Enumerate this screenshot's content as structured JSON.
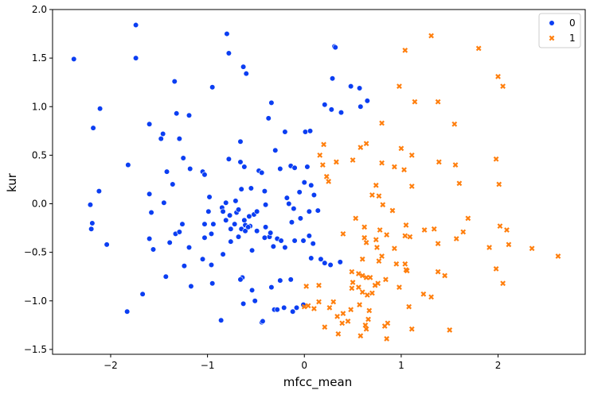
{
  "chart_data": {
    "type": "scatter",
    "xlabel": "mfcc_mean",
    "ylabel": "kur",
    "xlim": [
      -2.6,
      2.9
    ],
    "ylim": [
      -1.55,
      2.0
    ],
    "x_ticks": [
      -2,
      -1,
      0,
      1,
      2
    ],
    "x_tick_labels": [
      "−2",
      "−1",
      "0",
      "1",
      "2"
    ],
    "y_ticks": [
      -1.5,
      -1.0,
      -0.5,
      0.0,
      0.5,
      1.0,
      1.5,
      2.0
    ],
    "y_tick_labels": [
      "−1.5",
      "−1.0",
      "−0.5",
      "0.0",
      "0.5",
      "1.0",
      "1.5",
      "2.0"
    ],
    "grid": false,
    "legend": {
      "placement": "top-right"
    },
    "series": [
      {
        "name": "0",
        "marker": "circle",
        "color": "#0b3ef2",
        "points": [
          [
            -2.38,
            1.49
          ],
          [
            -1.74,
            1.84
          ],
          [
            -1.74,
            1.5
          ],
          [
            -2.11,
            0.98
          ],
          [
            -2.18,
            0.78
          ],
          [
            -2.21,
            -0.01
          ],
          [
            -2.19,
            -0.2
          ],
          [
            -2.2,
            -0.26
          ],
          [
            -2.12,
            0.13
          ],
          [
            -2.04,
            -0.42
          ],
          [
            -1.82,
            0.4
          ],
          [
            -1.83,
            -1.11
          ],
          [
            -1.67,
            -0.93
          ],
          [
            -1.6,
            0.82
          ],
          [
            -1.6,
            0.1
          ],
          [
            -1.58,
            -0.09
          ],
          [
            -1.6,
            -0.36
          ],
          [
            -1.56,
            -0.47
          ],
          [
            -1.48,
            0.67
          ],
          [
            -1.46,
            0.72
          ],
          [
            -1.45,
            0.01
          ],
          [
            -1.42,
            0.33
          ],
          [
            -1.43,
            -0.75
          ],
          [
            -1.39,
            -0.4
          ],
          [
            -1.36,
            0.2
          ],
          [
            -1.34,
            1.26
          ],
          [
            -1.32,
            0.93
          ],
          [
            -1.33,
            -0.31
          ],
          [
            -1.29,
            0.67
          ],
          [
            -1.29,
            -0.29
          ],
          [
            -1.25,
            0.47
          ],
          [
            -1.26,
            -0.21
          ],
          [
            -1.24,
            -0.64
          ],
          [
            -1.19,
            0.91
          ],
          [
            -1.18,
            0.36
          ],
          [
            -1.19,
            -0.45
          ],
          [
            -1.17,
            -0.85
          ],
          [
            -1.05,
            0.33
          ],
          [
            -1.03,
            0.3
          ],
          [
            -1.03,
            -0.21
          ],
          [
            -1.03,
            -0.35
          ],
          [
            -1.05,
            -0.57
          ],
          [
            -0.98,
            0.07
          ],
          [
            -0.99,
            -0.08
          ],
          [
            -0.95,
            1.2
          ],
          [
            -0.94,
            -0.21
          ],
          [
            -0.96,
            -0.31
          ],
          [
            -0.96,
            -0.63
          ],
          [
            -0.95,
            -0.82
          ],
          [
            -0.86,
            -1.2
          ],
          [
            -0.85,
            -0.04
          ],
          [
            -0.84,
            -0.08
          ],
          [
            -0.81,
            0.01
          ],
          [
            -0.81,
            -0.17
          ],
          [
            -0.84,
            -0.52
          ],
          [
            -0.8,
            1.75
          ],
          [
            -0.78,
            1.55
          ],
          [
            -0.78,
            0.46
          ],
          [
            -0.77,
            -0.12
          ],
          [
            -0.76,
            -0.26
          ],
          [
            -0.76,
            -0.39
          ],
          [
            -0.72,
            -0.21
          ],
          [
            -0.71,
            0.03
          ],
          [
            -0.7,
            -0.09
          ],
          [
            -0.68,
            -0.06
          ],
          [
            -0.68,
            -0.34
          ],
          [
            -0.66,
            0.64
          ],
          [
            -0.66,
            0.43
          ],
          [
            -0.65,
            0.15
          ],
          [
            -0.65,
            -0.26
          ],
          [
            -0.63,
            1.41
          ],
          [
            -0.62,
            0.38
          ],
          [
            -0.62,
            -0.17
          ],
          [
            -0.61,
            -0.22
          ],
          [
            -0.6,
            1.34
          ],
          [
            -0.61,
            -0.28
          ],
          [
            -0.57,
            -0.13
          ],
          [
            -0.56,
            -0.23
          ],
          [
            -0.55,
            0.16
          ],
          [
            -0.54,
            -0.48
          ],
          [
            -0.54,
            -0.89
          ],
          [
            -0.52,
            -0.11
          ],
          [
            -0.51,
            -1.0
          ],
          [
            -0.49,
            -0.08
          ],
          [
            -0.47,
            0.34
          ],
          [
            -0.44,
            0.32
          ],
          [
            -0.44,
            -1.22
          ],
          [
            -0.43,
            -1.21
          ],
          [
            -0.41,
            0.13
          ],
          [
            -0.4,
            -0.01
          ],
          [
            -0.4,
            -0.24
          ],
          [
            -0.37,
            0.88
          ],
          [
            -0.34,
            1.04
          ],
          [
            -0.36,
            -0.34
          ],
          [
            -0.34,
            -0.86
          ],
          [
            -0.32,
            -0.44
          ],
          [
            -0.3,
            0.55
          ],
          [
            -0.31,
            -1.09
          ],
          [
            -0.28,
            -0.36
          ],
          [
            -0.28,
            -1.09
          ],
          [
            -0.25,
            0.36
          ],
          [
            -0.25,
            -0.79
          ],
          [
            -0.24,
            -0.38
          ],
          [
            -0.2,
            -0.45
          ],
          [
            -0.21,
            -1.07
          ],
          [
            -0.2,
            0.74
          ],
          [
            -0.18,
            0.06
          ],
          [
            -0.16,
            0.0
          ],
          [
            -0.14,
            0.39
          ],
          [
            -0.13,
            -0.19
          ],
          [
            -0.1,
            0.37
          ],
          [
            -0.11,
            -0.05
          ],
          [
            -0.12,
            -1.11
          ],
          [
            -0.1,
            -0.38
          ],
          [
            -0.08,
            -1.07
          ],
          [
            -0.05,
            0.12
          ],
          [
            -0.04,
            -0.15
          ],
          [
            -0.01,
            -0.38
          ],
          [
            -0.01,
            -1.04
          ],
          [
            0.0,
            0.22
          ],
          [
            0.01,
            0.74
          ],
          [
            0.03,
            0.38
          ],
          [
            0.05,
            -0.08
          ],
          [
            0.05,
            -0.33
          ],
          [
            0.06,
            0.75
          ],
          [
            0.07,
            -0.56
          ],
          [
            0.07,
            0.19
          ],
          [
            0.09,
            -0.41
          ],
          [
            0.1,
            0.09
          ],
          [
            0.14,
            -0.07
          ],
          [
            0.17,
            -0.57
          ],
          [
            0.21,
            -0.61
          ],
          [
            0.21,
            1.02
          ],
          [
            0.27,
            -0.63
          ],
          [
            0.28,
            0.97
          ],
          [
            0.31,
            1.62
          ],
          [
            0.32,
            1.61
          ],
          [
            0.37,
            -0.6
          ],
          [
            0.38,
            0.94
          ],
          [
            0.29,
            1.29
          ],
          [
            0.48,
            1.21
          ],
          [
            0.57,
            1.19
          ],
          [
            0.58,
            1.0
          ],
          [
            0.65,
            1.06
          ],
          [
            -0.14,
            -0.78
          ],
          [
            -0.64,
            -0.76
          ],
          [
            -0.66,
            -0.78
          ],
          [
            -0.63,
            -1.03
          ],
          [
            -0.49,
            -0.28
          ],
          [
            -0.58,
            -0.24
          ],
          [
            -0.35,
            -0.3
          ],
          [
            -0.41,
            -0.35
          ]
        ]
      },
      {
        "name": "1",
        "marker": "x",
        "color": "#ff7f0e",
        "points": [
          [
            1.31,
            1.73
          ],
          [
            1.8,
            1.6
          ],
          [
            1.04,
            1.58
          ],
          [
            2.0,
            1.31
          ],
          [
            2.05,
            1.21
          ],
          [
            0.98,
            1.21
          ],
          [
            1.14,
            1.05
          ],
          [
            1.38,
            1.05
          ],
          [
            1.55,
            0.82
          ],
          [
            0.8,
            0.83
          ],
          [
            0.2,
            0.61
          ],
          [
            0.64,
            0.62
          ],
          [
            0.58,
            0.58
          ],
          [
            1.0,
            0.57
          ],
          [
            0.16,
            0.5
          ],
          [
            0.5,
            0.45
          ],
          [
            0.33,
            0.43
          ],
          [
            0.8,
            0.42
          ],
          [
            0.93,
            0.38
          ],
          [
            1.11,
            0.5
          ],
          [
            1.03,
            0.35
          ],
          [
            1.39,
            0.43
          ],
          [
            1.56,
            0.4
          ],
          [
            1.98,
            0.46
          ],
          [
            0.19,
            0.4
          ],
          [
            0.23,
            0.28
          ],
          [
            0.25,
            0.23
          ],
          [
            0.74,
            0.19
          ],
          [
            0.7,
            0.09
          ],
          [
            0.77,
            0.08
          ],
          [
            1.11,
            0.18
          ],
          [
            1.6,
            0.21
          ],
          [
            2.01,
            0.2
          ],
          [
            0.81,
            -0.01
          ],
          [
            0.91,
            -0.07
          ],
          [
            0.53,
            -0.15
          ],
          [
            0.62,
            -0.24
          ],
          [
            0.78,
            -0.27
          ],
          [
            1.05,
            -0.22
          ],
          [
            1.24,
            -0.27
          ],
          [
            1.34,
            -0.26
          ],
          [
            1.69,
            -0.15
          ],
          [
            2.02,
            -0.23
          ],
          [
            2.09,
            -0.27
          ],
          [
            1.64,
            -0.29
          ],
          [
            1.57,
            -0.36
          ],
          [
            1.38,
            -0.41
          ],
          [
            1.09,
            -0.34
          ],
          [
            1.04,
            -0.33
          ],
          [
            0.85,
            -0.32
          ],
          [
            0.74,
            -0.37
          ],
          [
            0.62,
            -0.35
          ],
          [
            0.4,
            -0.31
          ],
          [
            0.64,
            -0.4
          ],
          [
            0.75,
            -0.45
          ],
          [
            0.93,
            -0.46
          ],
          [
            0.8,
            -0.54
          ],
          [
            0.77,
            -0.59
          ],
          [
            0.95,
            -0.62
          ],
          [
            1.04,
            -0.62
          ],
          [
            1.05,
            -0.68
          ],
          [
            1.06,
            -0.69
          ],
          [
            0.6,
            -0.57
          ],
          [
            0.49,
            -0.7
          ],
          [
            0.56,
            -0.72
          ],
          [
            0.6,
            -0.74
          ],
          [
            0.68,
            -0.76
          ],
          [
            0.64,
            -0.76
          ],
          [
            0.84,
            -0.78
          ],
          [
            0.76,
            -0.82
          ],
          [
            0.73,
            -0.84
          ],
          [
            0.5,
            -0.81
          ],
          [
            0.49,
            -0.87
          ],
          [
            0.56,
            -0.86
          ],
          [
            0.98,
            -0.86
          ],
          [
            1.38,
            -0.7
          ],
          [
            1.45,
            -0.74
          ],
          [
            1.23,
            -0.93
          ],
          [
            1.31,
            -0.96
          ],
          [
            1.91,
            -0.45
          ],
          [
            2.11,
            -0.42
          ],
          [
            2.35,
            -0.46
          ],
          [
            2.62,
            -0.54
          ],
          [
            1.98,
            -0.67
          ],
          [
            2.05,
            -0.82
          ],
          [
            0.02,
            -0.85
          ],
          [
            0.15,
            -0.84
          ],
          [
            0.6,
            -0.91
          ],
          [
            0.65,
            -0.94
          ],
          [
            0.7,
            -0.92
          ],
          [
            1.08,
            -1.06
          ],
          [
            0.15,
            -1.01
          ],
          [
            0.3,
            -1.01
          ],
          [
            0.0,
            -1.06
          ],
          [
            0.04,
            -1.05
          ],
          [
            0.1,
            -1.08
          ],
          [
            0.26,
            -1.07
          ],
          [
            0.34,
            -1.16
          ],
          [
            0.4,
            -1.13
          ],
          [
            0.48,
            -1.09
          ],
          [
            0.57,
            -1.04
          ],
          [
            0.67,
            -1.1
          ],
          [
            0.45,
            -1.21
          ],
          [
            0.39,
            -1.23
          ],
          [
            0.66,
            -1.19
          ],
          [
            0.63,
            -1.25
          ],
          [
            0.64,
            -1.29
          ],
          [
            0.83,
            -1.26
          ],
          [
            0.86,
            -1.23
          ],
          [
            0.21,
            -1.27
          ],
          [
            0.35,
            -1.34
          ],
          [
            0.58,
            -1.36
          ],
          [
            0.85,
            -1.39
          ],
          [
            1.11,
            -1.29
          ],
          [
            1.5,
            -1.3
          ]
        ]
      }
    ]
  }
}
